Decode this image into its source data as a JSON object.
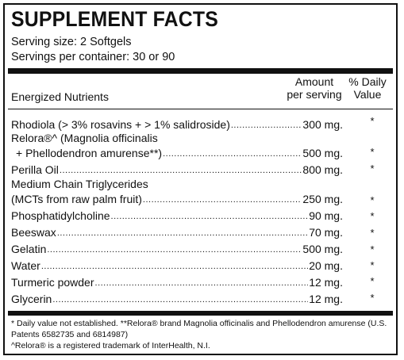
{
  "title": "SUPPLEMENT FACTS",
  "serving_size": "Serving size: 2 Softgels",
  "servings_per_container": "Servings per container: 30 or 90",
  "headers": {
    "nutrients": "Energized Nutrients",
    "amount_line1": "Amount",
    "amount_line2": "per serving",
    "dv_line1": "% Daily",
    "dv_line2": "Value"
  },
  "ingredients": [
    {
      "name": "Rhodiola (> 3% rosavins + > 1% salidroside)",
      "amount": "300 mg.",
      "dv": "*"
    },
    {
      "pre": "Relora®^ (Magnolia officinalis",
      "name": "+ Phellodendron amurense**)",
      "amount": "500 mg.",
      "dv": "*"
    },
    {
      "name": "Perilla Oil",
      "amount": "800 mg.",
      "dv": "*"
    },
    {
      "pre": "Medium Chain Triglycerides",
      "name": "(MCTs from raw palm fruit)",
      "amount": "250 mg.",
      "dv": "*"
    },
    {
      "name": "Phosphatidylcholine",
      "amount": "90 mg.",
      "dv": "*"
    },
    {
      "name": "Beeswax",
      "amount": "70 mg.",
      "dv": "*"
    },
    {
      "name": "Gelatin",
      "amount": "500 mg.",
      "dv": "*"
    },
    {
      "name": "Water",
      "amount": "20 mg.",
      "dv": "*"
    },
    {
      "name": "Turmeric powder",
      "amount": "12 mg.",
      "dv": "*"
    },
    {
      "name": "Glycerin",
      "amount": "12 mg.",
      "dv": "*"
    }
  ],
  "footnotes": {
    "line1": "* Daily value not established.  **Relora® brand Magnolia officinalis and Phellodendron amurense (U.S. Patents 6582735 and 6814987)",
    "line2": "^Relora® is a registered trademark of InterHealth, N.I."
  }
}
